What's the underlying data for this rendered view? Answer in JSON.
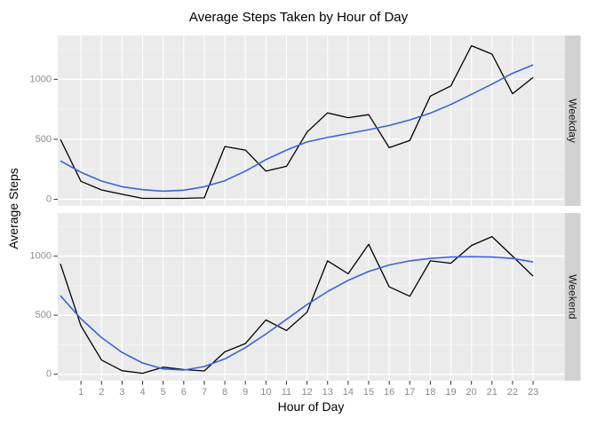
{
  "chart_data": {
    "type": "line",
    "title": "Average Steps Taken by Hour of Day",
    "xlabel": "Hour of Day",
    "ylabel": "Average Steps",
    "grid": true,
    "legend": false,
    "facet_layout": "rows",
    "x": [
      0,
      1,
      2,
      3,
      4,
      5,
      6,
      7,
      8,
      9,
      10,
      11,
      12,
      13,
      14,
      15,
      16,
      17,
      18,
      19,
      20,
      21,
      22,
      23
    ],
    "x_ticks": [
      1,
      2,
      3,
      4,
      5,
      6,
      7,
      8,
      9,
      10,
      11,
      12,
      13,
      14,
      15,
      16,
      17,
      18,
      19,
      20,
      21,
      22,
      23
    ],
    "x_tick_labels": [
      "1",
      "2",
      "3",
      "4",
      "5",
      "6",
      "7",
      "8",
      "9",
      "10",
      "11",
      "12",
      "13",
      "14",
      "15",
      "16",
      "17",
      "18",
      "19",
      "20",
      "21",
      "22",
      "23"
    ],
    "y_ticks": [
      0,
      500,
      1000
    ],
    "y_tick_labels": [
      "0",
      "500",
      "1000"
    ],
    "y_minor_ticks": [
      250,
      750,
      1250
    ],
    "xlim": [
      -0.13,
      24.51
    ],
    "ylim": [
      -55,
      1365
    ],
    "facets": [
      {
        "label": "Weekday",
        "series": [
          {
            "name": "actual",
            "color": "#000000",
            "width": 1.3,
            "values": [
              500,
              150,
              78,
              42,
              8,
              8,
              8,
              12,
              440,
              410,
              235,
              275,
              560,
              720,
              680,
              705,
              430,
              490,
              860,
              945,
              1280,
              1210,
              880,
              1015
            ]
          },
          {
            "name": "smooth",
            "color": "#3A63DC",
            "width": 1.6,
            "values": [
              320,
              225,
              152,
              105,
              80,
              68,
              76,
              105,
              155,
              235,
              330,
              410,
              478,
              515,
              548,
              580,
              615,
              662,
              718,
              790,
              875,
              960,
              1050,
              1120
            ]
          }
        ]
      },
      {
        "label": "Weekend",
        "series": [
          {
            "name": "actual",
            "color": "#000000",
            "width": 1.3,
            "values": [
              935,
              410,
              120,
              30,
              8,
              60,
              40,
              28,
              190,
              260,
              460,
              370,
              525,
              960,
              850,
              1100,
              740,
              660,
              960,
              940,
              1090,
              1165,
              1000,
              830
            ]
          },
          {
            "name": "smooth",
            "color": "#3A63DC",
            "width": 1.6,
            "values": [
              665,
              470,
              310,
              185,
              95,
              45,
              35,
              65,
              130,
              225,
              340,
              465,
              590,
              700,
              795,
              870,
              925,
              960,
              980,
              992,
              995,
              992,
              980,
              950
            ]
          }
        ]
      }
    ],
    "colors": {
      "panel_bg": "#EBEBEB",
      "grid_major": "#FFFFFF",
      "grid_minor": "#F7F7F7",
      "strip_bg": "#D2D2D2",
      "strip_text": "#1A1A1A",
      "axis_text": "#8C8C8C",
      "tick_mark": "#333333"
    }
  }
}
